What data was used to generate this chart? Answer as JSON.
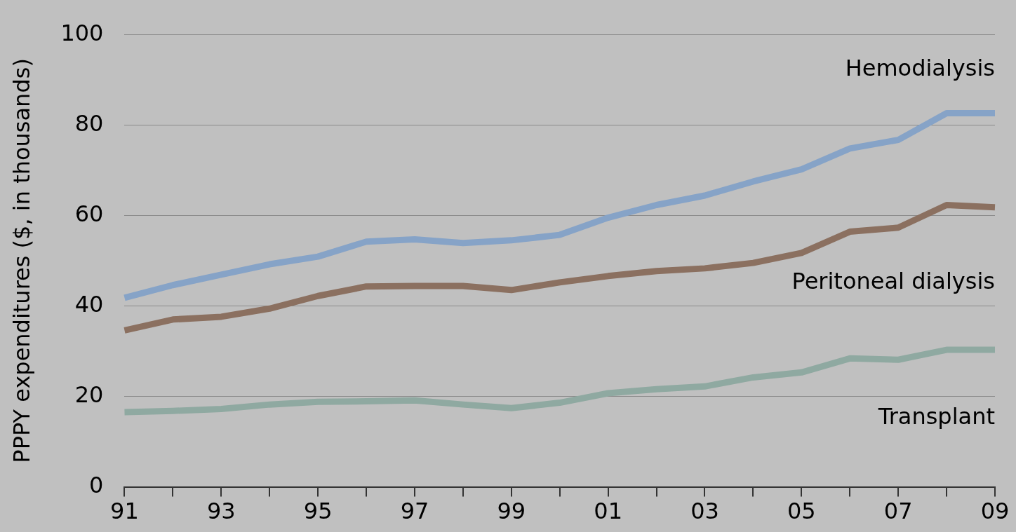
{
  "chart_data": {
    "type": "line",
    "ylabel": "PPPY expenditures ($, in thousands)",
    "categories": [
      "91",
      null,
      "93",
      null,
      "95",
      null,
      "97",
      null,
      "99",
      null,
      "01",
      null,
      "03",
      null,
      "05",
      null,
      "07",
      null,
      "09"
    ],
    "ylim": [
      0,
      100
    ],
    "yticks": [
      0,
      20,
      40,
      60,
      80,
      100
    ],
    "grid": "y",
    "legend": false,
    "marker": "none",
    "line_style": "solid",
    "series": [
      {
        "name": "Hemodialysis",
        "color": "#86a3c7",
        "values": [
          41.8,
          44.6,
          46.9,
          49.2,
          50.9,
          54.2,
          54.7,
          53.9,
          54.5,
          55.7,
          59.5,
          62.3,
          64.4,
          67.5,
          70.2,
          74.8,
          76.7,
          82.6,
          82.6
        ]
      },
      {
        "name": "Peritoneal dialysis",
        "color": "#8b7060",
        "values": [
          34.6,
          37.0,
          37.6,
          39.4,
          42.2,
          44.3,
          44.4,
          44.4,
          43.5,
          45.2,
          46.6,
          47.7,
          48.3,
          49.5,
          51.7,
          56.4,
          57.3,
          62.3,
          61.8
        ]
      },
      {
        "name": "Transplant",
        "color": "#8fa9a1",
        "values": [
          16.5,
          16.8,
          17.2,
          18.2,
          18.8,
          18.9,
          19.1,
          18.2,
          17.4,
          18.6,
          20.7,
          21.6,
          22.2,
          24.2,
          25.3,
          28.4,
          28.1,
          30.3,
          30.3
        ]
      }
    ]
  }
}
